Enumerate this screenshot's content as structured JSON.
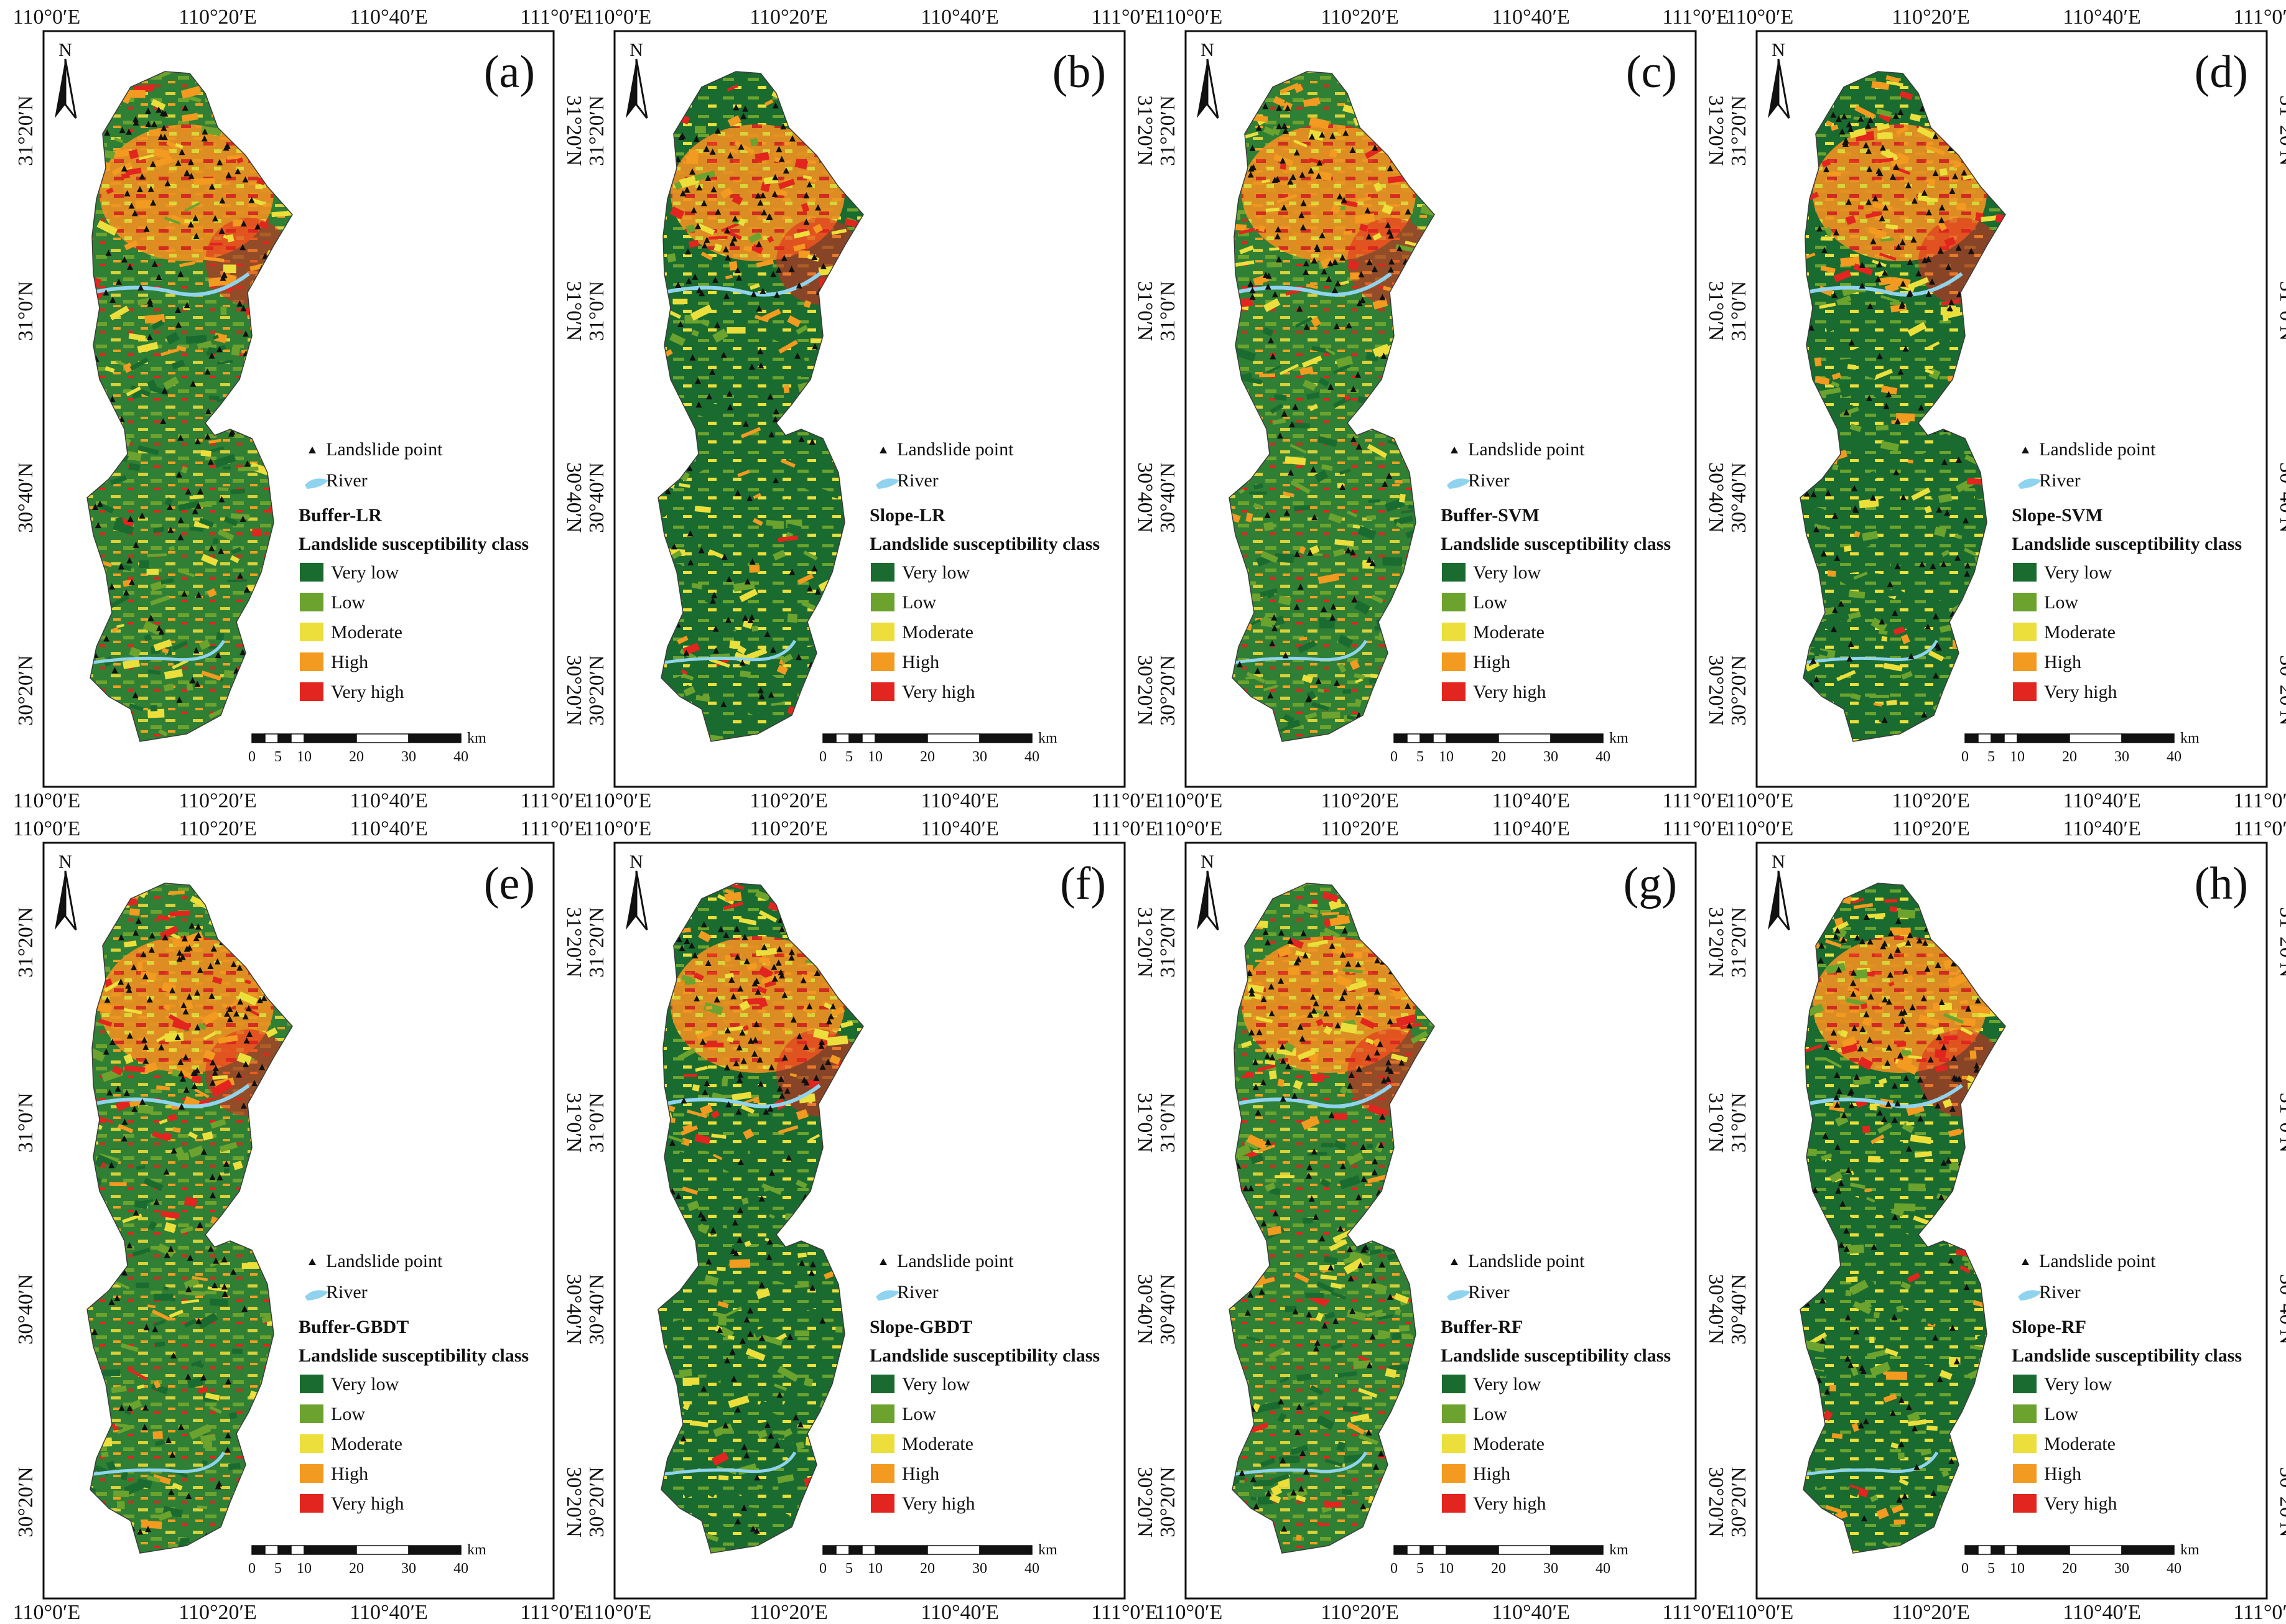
{
  "figure": {
    "lon_labels": [
      "110°0′E",
      "110°20′E",
      "110°40′E",
      "111°0′E"
    ],
    "lat_labels": [
      "31°20′N",
      "31°0′N",
      "30°40′N",
      "30°20′N"
    ],
    "north_label": "N",
    "legend": {
      "landslide_point": "Landslide point",
      "river": "River",
      "class_title": "Landslide susceptibility class",
      "classes": [
        {
          "label": "Very low",
          "color": "#1a6b2f"
        },
        {
          "label": "Low",
          "color": "#6ca32f"
        },
        {
          "label": "Moderate",
          "color": "#ecdf3c"
        },
        {
          "label": "High",
          "color": "#f39a20"
        },
        {
          "label": "Very high",
          "color": "#e3251f"
        }
      ]
    },
    "scale_bar": {
      "unit": "km",
      "ticks": [
        "0",
        "5",
        "10",
        "20",
        "30",
        "40"
      ]
    },
    "river_color": "#8fd3ef",
    "panels": [
      {
        "letter": "(a)",
        "model": "Buffer-LR"
      },
      {
        "letter": "(b)",
        "model": "Slope-LR"
      },
      {
        "letter": "(c)",
        "model": "Buffer-SVM"
      },
      {
        "letter": "(d)",
        "model": "Slope-SVM"
      },
      {
        "letter": "(e)",
        "model": "Buffer-GBDT"
      },
      {
        "letter": "(f)",
        "model": "Slope-GBDT"
      },
      {
        "letter": "(g)",
        "model": "Buffer-RF"
      },
      {
        "letter": "(h)",
        "model": "Slope-RF"
      }
    ]
  }
}
